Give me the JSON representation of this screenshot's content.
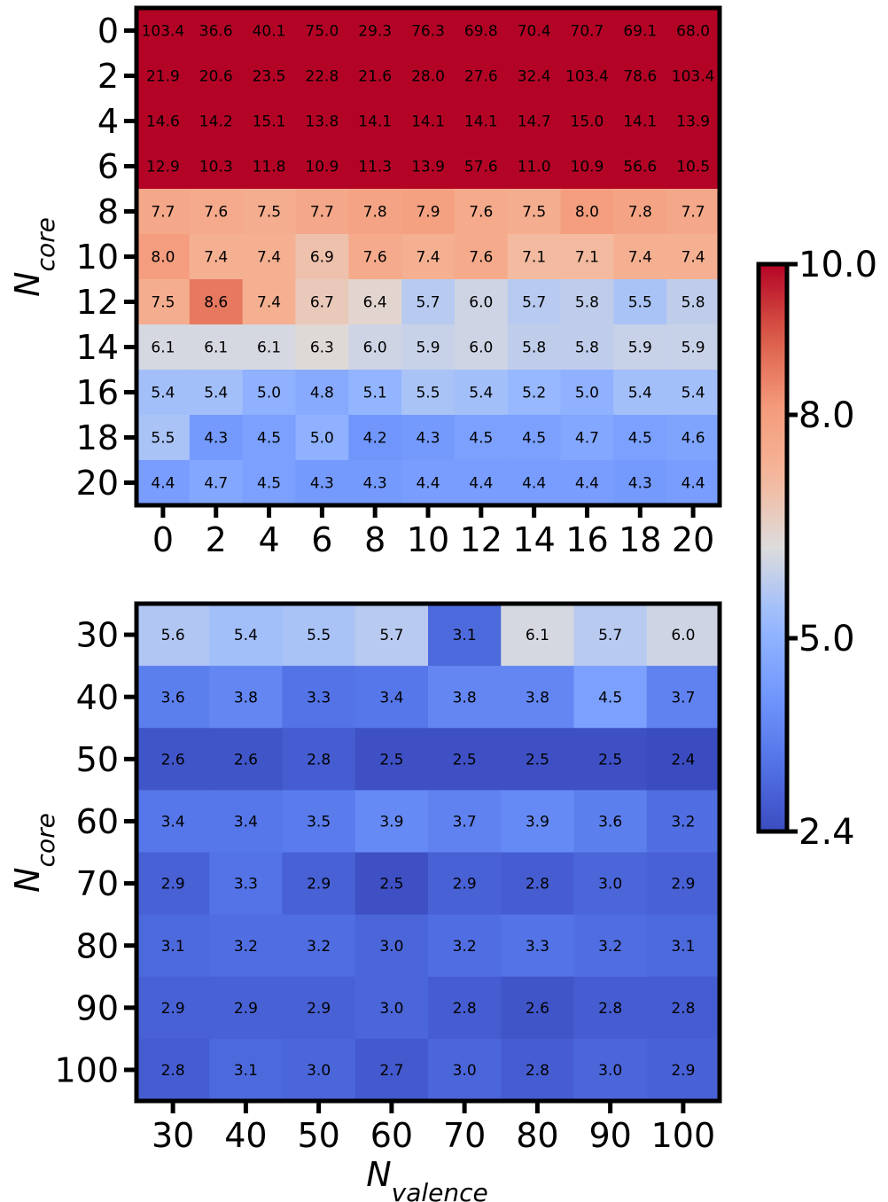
{
  "chart_data": [
    {
      "type": "heatmap",
      "ylabel": "N_core",
      "ylabel_main": "N",
      "ylabel_sub": "core",
      "xlabel": "",
      "x": [
        "0",
        "2",
        "4",
        "6",
        "8",
        "10",
        "12",
        "14",
        "16",
        "18",
        "20"
      ],
      "y": [
        "0",
        "2",
        "4",
        "6",
        "8",
        "10",
        "12",
        "14",
        "16",
        "18",
        "20"
      ],
      "values": [
        [
          "103.4",
          "36.6",
          "40.1",
          "75.0",
          "29.3",
          "76.3",
          "69.8",
          "70.4",
          "70.7",
          "69.1",
          "68.0"
        ],
        [
          "21.9",
          "20.6",
          "23.5",
          "22.8",
          "21.6",
          "28.0",
          "27.6",
          "32.4",
          "103.4",
          "78.6",
          "103.4"
        ],
        [
          "14.6",
          "14.2",
          "15.1",
          "13.8",
          "14.1",
          "14.1",
          "14.1",
          "14.7",
          "15.0",
          "14.1",
          "13.9"
        ],
        [
          "12.9",
          "10.3",
          "11.8",
          "10.9",
          "11.3",
          "13.9",
          "57.6",
          "11.0",
          "10.9",
          "56.6",
          "10.5"
        ],
        [
          "7.7",
          "7.6",
          "7.5",
          "7.7",
          "7.8",
          "7.9",
          "7.6",
          "7.5",
          "8.0",
          "7.8",
          "7.7"
        ],
        [
          "8.0",
          "7.4",
          "7.4",
          "6.9",
          "7.6",
          "7.4",
          "7.6",
          "7.1",
          "7.1",
          "7.4",
          "7.4"
        ],
        [
          "7.5",
          "8.6",
          "7.4",
          "6.7",
          "6.4",
          "5.7",
          "6.0",
          "5.7",
          "5.8",
          "5.5",
          "5.8"
        ],
        [
          "6.1",
          "6.1",
          "6.1",
          "6.3",
          "6.0",
          "5.9",
          "6.0",
          "5.8",
          "5.8",
          "5.9",
          "5.9"
        ],
        [
          "5.4",
          "5.4",
          "5.0",
          "4.8",
          "5.1",
          "5.5",
          "5.4",
          "5.2",
          "5.0",
          "5.4",
          "5.4"
        ],
        [
          "5.5",
          "4.3",
          "4.5",
          "5.0",
          "4.2",
          "4.3",
          "4.5",
          "4.5",
          "4.7",
          "4.5",
          "4.6"
        ],
        [
          "4.4",
          "4.7",
          "4.5",
          "4.3",
          "4.3",
          "4.4",
          "4.4",
          "4.4",
          "4.4",
          "4.3",
          "4.4"
        ]
      ]
    },
    {
      "type": "heatmap",
      "ylabel": "N_core",
      "ylabel_main": "N",
      "ylabel_sub": "core",
      "xlabel": "N_valence",
      "xlabel_main": "N",
      "xlabel_sub": "valence",
      "x": [
        "30",
        "40",
        "50",
        "60",
        "70",
        "80",
        "90",
        "100"
      ],
      "y": [
        "30",
        "40",
        "50",
        "60",
        "70",
        "80",
        "90",
        "100"
      ],
      "values": [
        [
          "5.6",
          "5.4",
          "5.5",
          "5.7",
          "3.1",
          "6.1",
          "5.7",
          "6.0"
        ],
        [
          "3.6",
          "3.8",
          "3.3",
          "3.4",
          "3.8",
          "3.8",
          "4.5",
          "3.7"
        ],
        [
          "2.6",
          "2.6",
          "2.8",
          "2.5",
          "2.5",
          "2.5",
          "2.5",
          "2.4"
        ],
        [
          "3.4",
          "3.4",
          "3.5",
          "3.9",
          "3.7",
          "3.9",
          "3.6",
          "3.2"
        ],
        [
          "2.9",
          "3.3",
          "2.9",
          "2.5",
          "2.9",
          "2.8",
          "3.0",
          "2.9"
        ],
        [
          "3.1",
          "3.2",
          "3.2",
          "3.0",
          "3.2",
          "3.3",
          "3.2",
          "3.1"
        ],
        [
          "2.9",
          "2.9",
          "2.9",
          "3.0",
          "2.8",
          "2.6",
          "2.8",
          "2.8"
        ],
        [
          "2.8",
          "3.1",
          "3.0",
          "2.7",
          "3.0",
          "2.8",
          "3.0",
          "2.9"
        ]
      ]
    }
  ],
  "colorbar": {
    "colormap": "coolwarm",
    "range": [
      2.4,
      10.0
    ],
    "ticks": [
      "10.0",
      "8.0",
      "5.0",
      "2.4"
    ],
    "tick_values": [
      10.0,
      8.0,
      5.0,
      2.4
    ]
  },
  "colors": {
    "low": "#3b4cc0",
    "mid": "#dddcdc",
    "high": "#b40426",
    "frame": "#000000"
  }
}
